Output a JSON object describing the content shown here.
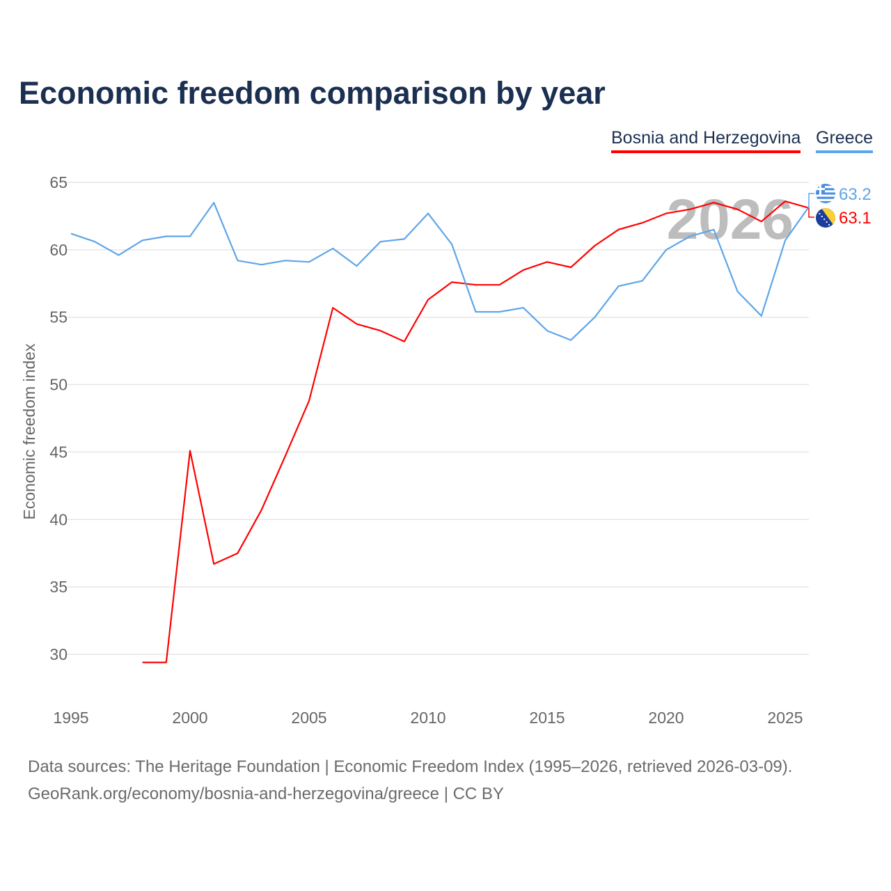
{
  "chart_data": {
    "type": "line",
    "title": "Economic freedom comparison by year",
    "xlabel": "",
    "ylabel": "Economic freedom index",
    "xlim": [
      1995,
      2026
    ],
    "ylim": [
      27,
      65
    ],
    "yticks": [
      30,
      35,
      40,
      45,
      50,
      55,
      60,
      65
    ],
    "xticks": [
      1995,
      2000,
      2005,
      2010,
      2015,
      2020,
      2025
    ],
    "grid": true,
    "legend_position": "top-right",
    "watermark_year": "2026",
    "series": [
      {
        "name": "Bosnia and Herzegovina",
        "color": "#ff0000",
        "end_label": "63.1",
        "flag": "bosnia-flag-icon",
        "x": [
          1998,
          1999,
          2000,
          2001,
          2002,
          2003,
          2004,
          2005,
          2006,
          2007,
          2008,
          2009,
          2010,
          2011,
          2012,
          2013,
          2014,
          2015,
          2016,
          2017,
          2018,
          2019,
          2020,
          2021,
          2022,
          2023,
          2024,
          2025,
          2026
        ],
        "values": [
          29.4,
          29.4,
          45.1,
          36.7,
          37.5,
          40.7,
          44.7,
          48.8,
          55.7,
          54.5,
          54.0,
          53.2,
          56.3,
          57.6,
          57.4,
          57.4,
          58.5,
          59.1,
          58.7,
          60.3,
          61.5,
          62.0,
          62.7,
          63.0,
          63.5,
          63.0,
          62.1,
          63.6,
          63.1
        ]
      },
      {
        "name": "Greece",
        "color": "#5ea5e8",
        "end_label": "63.2",
        "flag": "greece-flag-icon",
        "x": [
          1995,
          1996,
          1997,
          1998,
          1999,
          2000,
          2001,
          2002,
          2003,
          2004,
          2005,
          2006,
          2007,
          2008,
          2009,
          2010,
          2011,
          2012,
          2013,
          2014,
          2015,
          2016,
          2017,
          2018,
          2019,
          2020,
          2021,
          2022,
          2023,
          2024,
          2025,
          2026
        ],
        "values": [
          61.2,
          60.6,
          59.6,
          60.7,
          61.0,
          61.0,
          63.5,
          59.2,
          58.9,
          59.2,
          59.1,
          60.1,
          58.8,
          60.6,
          60.8,
          62.7,
          60.4,
          55.4,
          55.4,
          55.7,
          54.0,
          53.3,
          55.0,
          57.3,
          57.7,
          60.0,
          61.0,
          61.5,
          56.9,
          55.1,
          60.7,
          63.2
        ]
      }
    ]
  },
  "footer": {
    "line1": "Data sources: The Heritage Foundation | Economic Freedom Index (1995–2026, retrieved 2026-03-09).",
    "line2": "GeoRank.org/economy/bosnia-and-herzegovina/greece | CC BY"
  }
}
